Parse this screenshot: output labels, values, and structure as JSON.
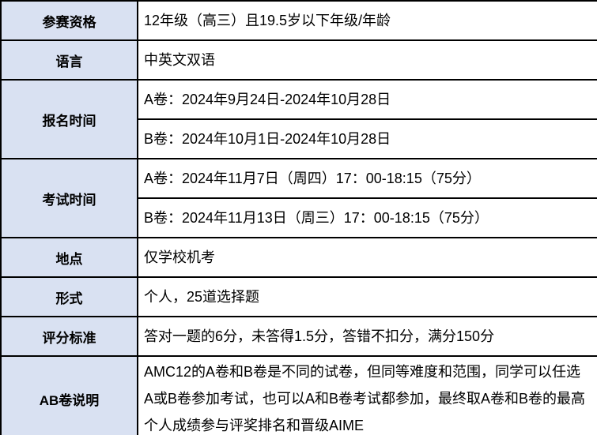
{
  "table": {
    "colors": {
      "label_column_bg": "#d9e1f2",
      "value_column_bg": "#ffffff",
      "border": "#000000",
      "text": "#000000"
    },
    "rows": [
      {
        "label": "参赛资格",
        "values": [
          "12年级（高三）且19.5岁以下年级/年龄"
        ]
      },
      {
        "label": "语言",
        "values": [
          "中英文双语"
        ]
      },
      {
        "label": "报名时间",
        "values": [
          "A卷：2024年9月24日-2024年10月28日",
          "B卷：2024年10月1日-2024年10月28日"
        ]
      },
      {
        "label": "考试时间",
        "values": [
          "A卷：2024年11月7日（周四）17：00-18:15（75分）",
          "B卷：2024年11月13日（周三）17：00-18:15（75分）"
        ]
      },
      {
        "label": "地点",
        "values": [
          "仅学校机考"
        ]
      },
      {
        "label": "形式",
        "values": [
          "个人，25道选择题"
        ]
      },
      {
        "label": "评分标准",
        "values": [
          "答对一题的6分，未答得1.5分，答错不扣分，满分150分"
        ]
      },
      {
        "label": "AB卷说明",
        "values": [
          "AMC12的A卷和B卷是不同的试卷，但同等难度和范围，同学可以任选A或B卷参加考试，也可以A和B卷考试都参加，最终取A卷和B卷的最高个人成绩参与评奖排名和晋级AIME"
        ]
      }
    ]
  }
}
